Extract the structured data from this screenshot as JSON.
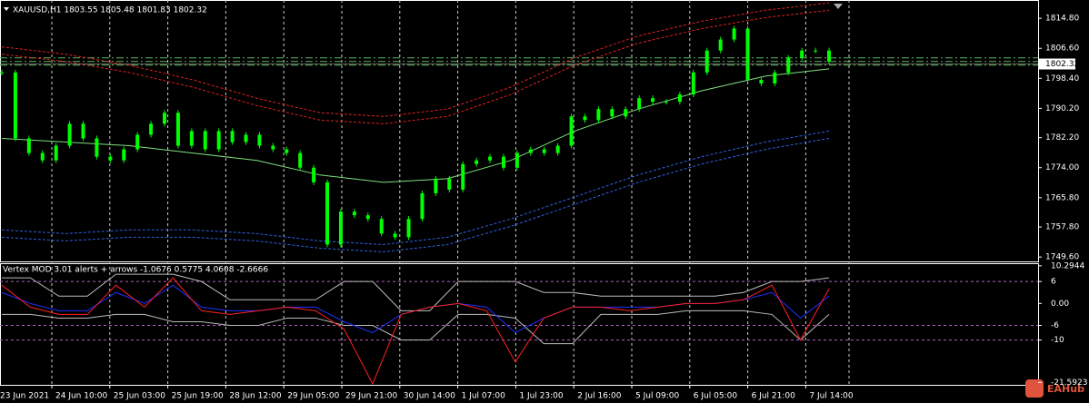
{
  "header": {
    "symbol_info": "XAUUSD,H1  1803.55 1805.48 1801.83 1802.32"
  },
  "price_chart": {
    "type": "candlestick",
    "ylim": [
      1748.4,
      1819.8
    ],
    "yticks": [
      {
        "value": 1814.8,
        "label": "1814.80"
      },
      {
        "value": 1806.6,
        "label": "1806.60"
      },
      {
        "value": 1798.4,
        "label": "1798.40"
      },
      {
        "value": 1790.2,
        "label": "1790.20"
      },
      {
        "value": 1782.2,
        "label": "1782.20"
      },
      {
        "value": 1774,
        "label": "1774.00"
      },
      {
        "value": 1765.8,
        "label": "1765.80"
      },
      {
        "value": 1757.8,
        "label": "1757.80"
      },
      {
        "value": 1749.6,
        "label": "1749.60"
      }
    ],
    "closes": [
      1800,
      1782,
      1778,
      1776,
      1780,
      1786,
      1782,
      1777,
      1776,
      1779,
      1783,
      1786,
      1789,
      1780,
      1784,
      1779,
      1784,
      1781,
      1783,
      1780,
      1779,
      1778,
      1774,
      1770,
      1753,
      1762,
      1761,
      1760,
      1756,
      1755,
      1760,
      1767,
      1771,
      1768,
      1775,
      1776,
      1777,
      1774,
      1778,
      1779,
      1778,
      1780,
      1788,
      1787,
      1790,
      1788,
      1790,
      1793,
      1792,
      1792,
      1794,
      1800,
      1806,
      1809,
      1812,
      1798,
      1797,
      1800,
      1804,
      1806,
      1806,
      1803
    ],
    "ma": [
      1782,
      1781,
      1780,
      1778,
      1776,
      1772,
      1770,
      1771,
      1776,
      1784,
      1790,
      1795,
      1799,
      1801
    ],
    "upper_bands": [
      [
        1807,
        1805,
        1802,
        1798,
        1793,
        1789,
        1788,
        1790,
        1796,
        1804,
        1810,
        1814,
        1817,
        1819
      ],
      [
        1805,
        1803,
        1800,
        1796,
        1791,
        1787,
        1786,
        1788,
        1794,
        1802,
        1808,
        1812,
        1815,
        1817
      ]
    ],
    "lower_bands": [
      [
        1757,
        1756,
        1757,
        1757,
        1756,
        1754,
        1753,
        1755,
        1760,
        1766,
        1772,
        1777,
        1781,
        1784
      ],
      [
        1755,
        1754,
        1755,
        1755,
        1754,
        1752,
        1751,
        1753,
        1758,
        1764,
        1770,
        1775,
        1779,
        1782
      ]
    ],
    "levels": [
      1804,
      1803,
      1802
    ],
    "current_price": {
      "value": 1802.32,
      "label": "1802.32"
    }
  },
  "time_axis": [
    "23 Jun 2021",
    "24 Jun 10:00",
    "25 Jun 03:00",
    "25 Jun 19:00",
    "28 Jun 12:00",
    "29 Jun 05:00",
    "29 Jun 21:00",
    "30 Jun 14:00",
    "1 Jul 07:00",
    "1 Jul 23:00",
    "2 Jul 16:00",
    "5 Jul 09:00",
    "6 Jul 05:00",
    "6 Jul 21:00",
    "7 Jul 14:00"
  ],
  "indicator": {
    "title": "Vertex MOD 3.01 alerts + arrows -1.0676 0.5775 4.0608 -2.6666",
    "ylim": [
      -22.25,
      11
    ],
    "yticks": [
      {
        "value": 10.2944,
        "label": "10.2944"
      },
      6,
      {
        "value": 0,
        "label": "0.00"
      },
      -6,
      -10,
      {
        "value": -21.5923,
        "label": "-21.5923"
      }
    ],
    "levels": [
      6,
      -6,
      -10
    ],
    "signal": [
      5,
      -1,
      -3,
      -3,
      5,
      -1,
      7,
      -2,
      -3,
      -2,
      -1,
      -2,
      -7,
      -22,
      -3,
      -1,
      0,
      -2,
      -16,
      -4,
      -1,
      -1,
      -2,
      -1,
      0,
      0,
      1,
      5,
      -10,
      4
    ],
    "main": [
      3,
      0,
      -2,
      -2,
      3,
      0,
      5,
      -1,
      -2,
      -2,
      -1,
      -1,
      -5,
      -8,
      -3,
      -1,
      0,
      -1,
      -8,
      -4,
      -1,
      -1,
      -1,
      -1,
      0,
      0,
      1,
      3,
      -4,
      2
    ],
    "band_upper": [
      7,
      7,
      2,
      2,
      8,
      8,
      8,
      6,
      1,
      1,
      1,
      1,
      6,
      6,
      -2,
      -2,
      6,
      6,
      6,
      3,
      3,
      2,
      2,
      2,
      2,
      2,
      3,
      6,
      6,
      7
    ],
    "band_lower": [
      -3,
      -3,
      -4,
      -4,
      -3,
      -3,
      -5,
      -5,
      -6,
      -6,
      -4,
      -4,
      -6,
      -6,
      -10,
      -10,
      -3,
      -3,
      -4,
      -11,
      -11,
      -3,
      -3,
      -3,
      -2,
      -2,
      -2,
      -3,
      -10,
      -3
    ]
  },
  "watermark": "EAHub"
}
